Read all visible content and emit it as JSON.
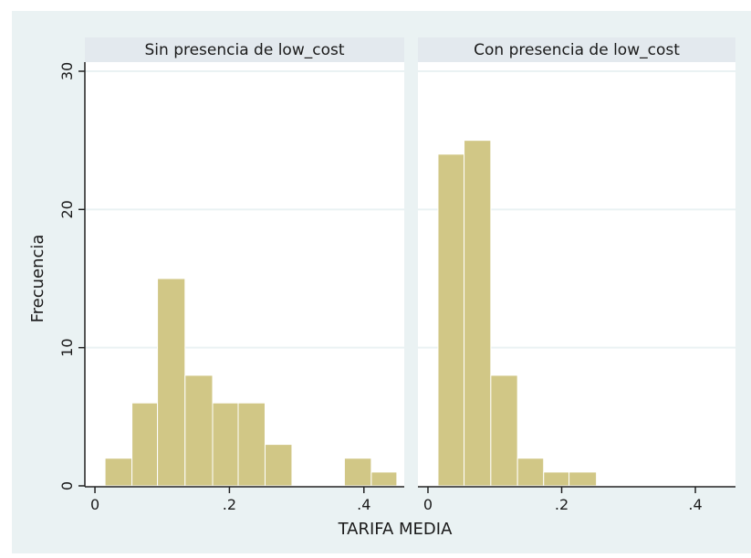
{
  "chart_data": {
    "type": "bar",
    "subtype": "histogram-by-panel",
    "xlabel": "TARIFA MEDIA",
    "ylabel": "Frecuencia",
    "ylim": [
      0,
      30
    ],
    "xlim": [
      -0.015,
      0.46
    ],
    "y_ticks": [
      0,
      10,
      20,
      30
    ],
    "y_tick_labels": [
      "0",
      "10",
      "20",
      "30"
    ],
    "x_ticks": [
      0,
      0.2,
      0.4
    ],
    "x_tick_labels": [
      "0",
      ".2",
      ".4"
    ],
    "grid": "horizontal",
    "bar_color": "#d1c786",
    "bar_edge_color": "#ffffff",
    "panel_header_color": "#e3e9ee",
    "outer_background": "#eaf2f3",
    "panels": [
      {
        "title": "Sin presencia de low_cost",
        "bins": [
          {
            "start": 0.015,
            "end": 0.055,
            "count": 2
          },
          {
            "start": 0.055,
            "end": 0.093,
            "count": 6
          },
          {
            "start": 0.093,
            "end": 0.134,
            "count": 15
          },
          {
            "start": 0.134,
            "end": 0.175,
            "count": 8
          },
          {
            "start": 0.175,
            "end": 0.213,
            "count": 6
          },
          {
            "start": 0.213,
            "end": 0.253,
            "count": 6
          },
          {
            "start": 0.253,
            "end": 0.293,
            "count": 3
          },
          {
            "start": 0.293,
            "end": 0.371,
            "count": 0
          },
          {
            "start": 0.371,
            "end": 0.411,
            "count": 2
          },
          {
            "start": 0.411,
            "end": 0.449,
            "count": 1
          }
        ]
      },
      {
        "title": "Con presencia de low_cost",
        "bins": [
          {
            "start": 0.015,
            "end": 0.054,
            "count": 24
          },
          {
            "start": 0.054,
            "end": 0.094,
            "count": 25
          },
          {
            "start": 0.094,
            "end": 0.134,
            "count": 8
          },
          {
            "start": 0.134,
            "end": 0.173,
            "count": 2
          },
          {
            "start": 0.173,
            "end": 0.211,
            "count": 1
          },
          {
            "start": 0.211,
            "end": 0.252,
            "count": 1
          }
        ]
      }
    ]
  }
}
